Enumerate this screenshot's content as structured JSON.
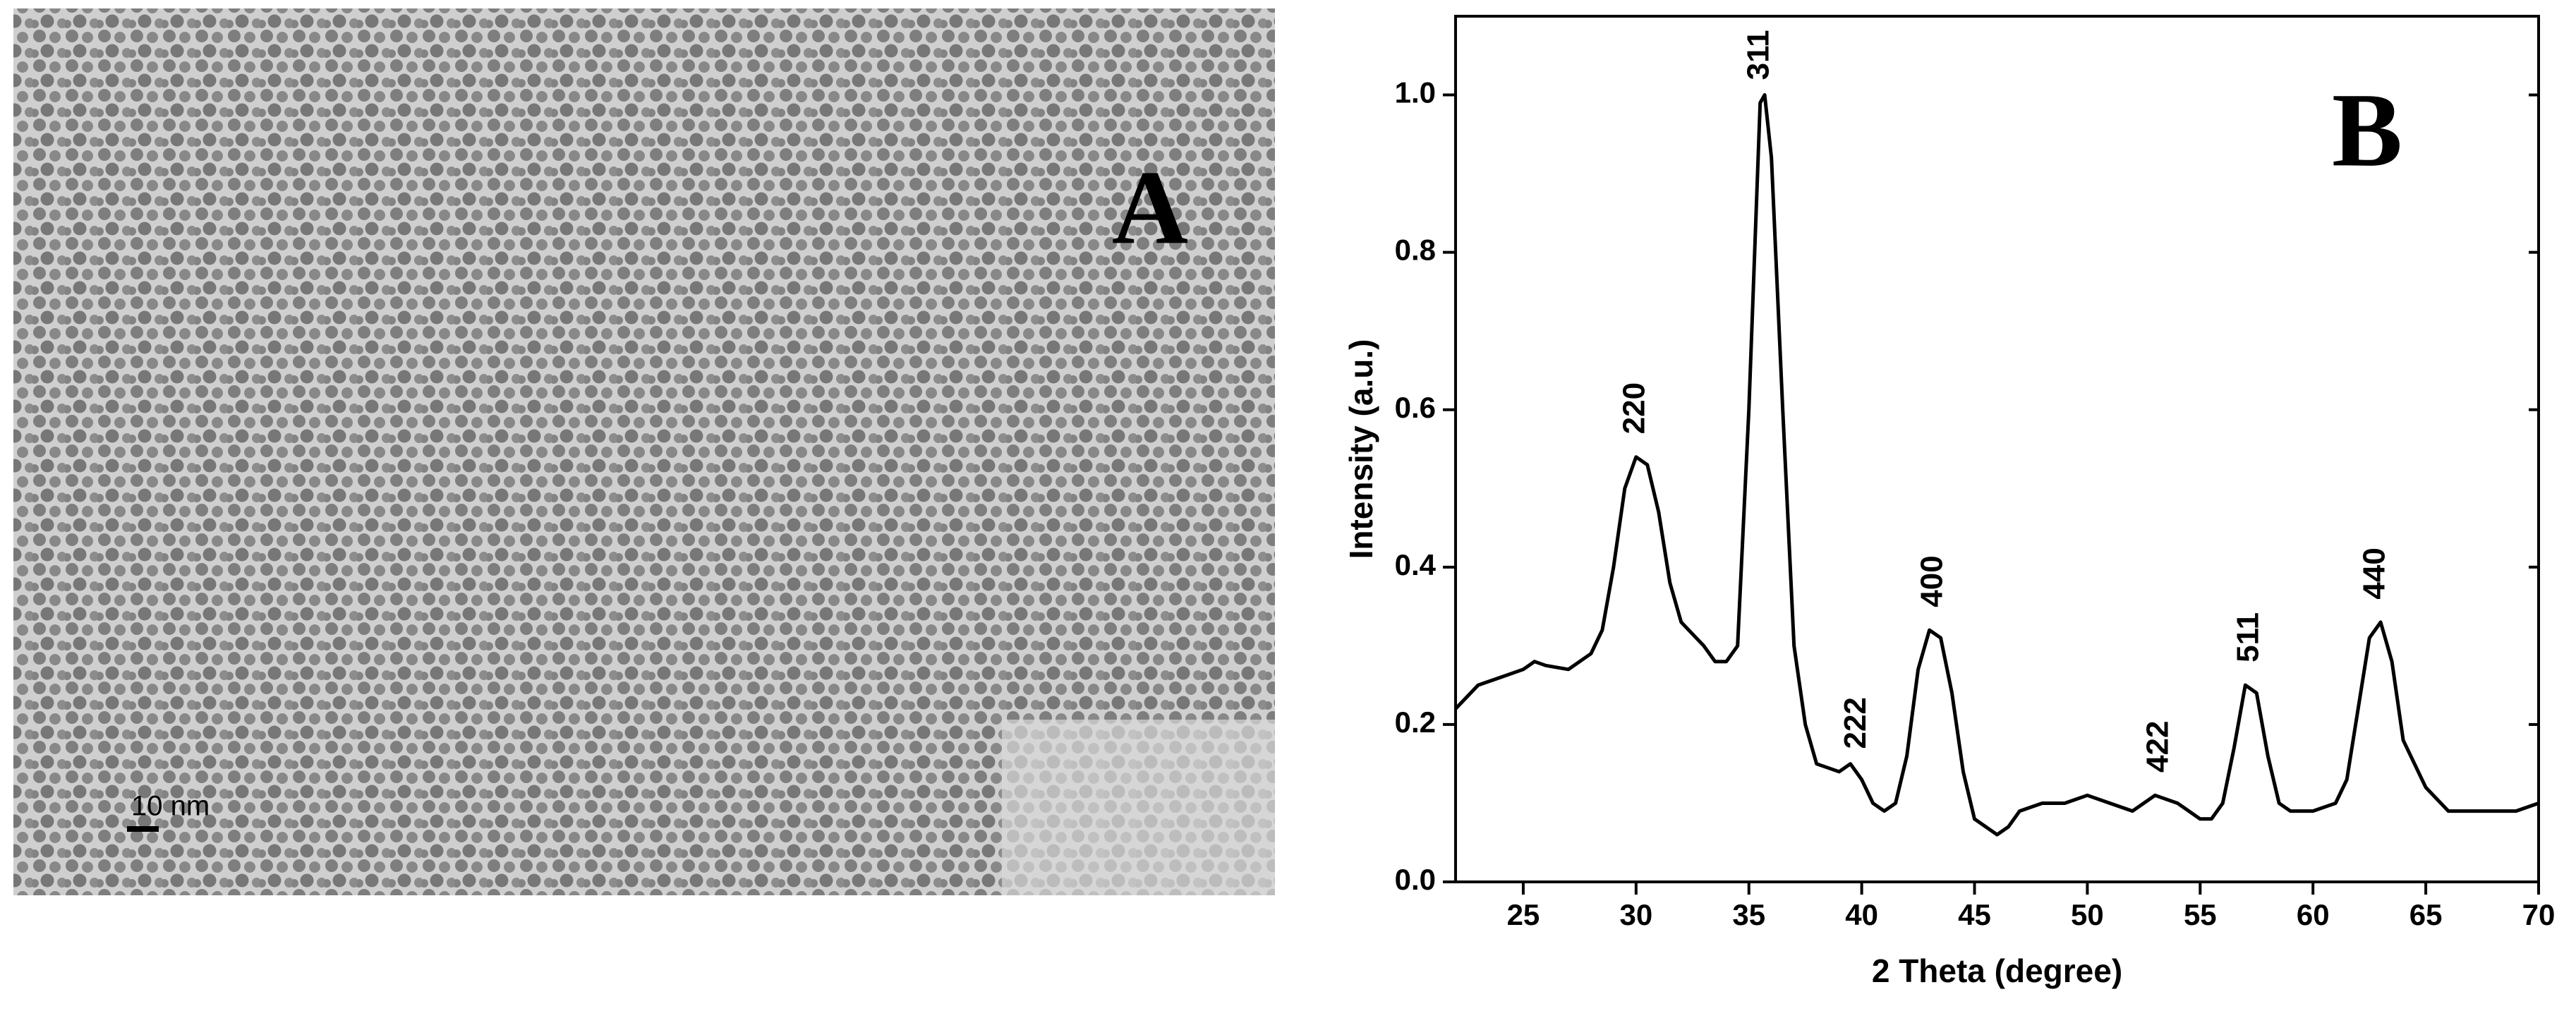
{
  "panel_a": {
    "label": "A",
    "scale_bar": "10 nm"
  },
  "chart_data": {
    "type": "line",
    "panel_label": "B",
    "xlabel": "2 Theta (degree)",
    "ylabel": "Intensity (a.u.)",
    "color": "#000000",
    "x": [
      22,
      23,
      24,
      25,
      25.5,
      26,
      27,
      28,
      28.5,
      29,
      29.5,
      30,
      30.5,
      31,
      31.5,
      32,
      33,
      33.5,
      34,
      34.5,
      35,
      35.5,
      35.7,
      36,
      36.5,
      37,
      37.5,
      38,
      39,
      39.5,
      40,
      40.5,
      41,
      41.5,
      42,
      42.5,
      43,
      43.5,
      44,
      44.5,
      45,
      46,
      46.5,
      47,
      48,
      49,
      50,
      51,
      52,
      53,
      54,
      55,
      55.5,
      56,
      56.5,
      57,
      57.5,
      58,
      58.5,
      59,
      60,
      61,
      61.5,
      62,
      62.5,
      63,
      63.5,
      64,
      65,
      66,
      67,
      68,
      69,
      70
    ],
    "values": [
      0.22,
      0.25,
      0.26,
      0.27,
      0.28,
      0.275,
      0.27,
      0.29,
      0.32,
      0.4,
      0.5,
      0.54,
      0.53,
      0.47,
      0.38,
      0.33,
      0.3,
      0.28,
      0.28,
      0.3,
      0.6,
      0.99,
      1.0,
      0.92,
      0.6,
      0.3,
      0.2,
      0.15,
      0.14,
      0.15,
      0.13,
      0.1,
      0.09,
      0.1,
      0.16,
      0.27,
      0.32,
      0.31,
      0.24,
      0.14,
      0.08,
      0.06,
      0.07,
      0.09,
      0.1,
      0.1,
      0.11,
      0.1,
      0.09,
      0.11,
      0.1,
      0.08,
      0.08,
      0.1,
      0.17,
      0.25,
      0.24,
      0.16,
      0.1,
      0.09,
      0.09,
      0.1,
      0.13,
      0.22,
      0.31,
      0.33,
      0.28,
      0.18,
      0.12,
      0.09,
      0.09,
      0.09,
      0.09,
      0.1
    ],
    "xlim": [
      22,
      70
    ],
    "ylim": [
      0,
      1.1
    ],
    "xticks": [
      25,
      30,
      35,
      40,
      45,
      50,
      55,
      60,
      65,
      70
    ],
    "yticks": [
      {
        "value": 0,
        "label": "0.0"
      },
      {
        "value": 0.2,
        "label": "0.2"
      },
      {
        "value": 0.4,
        "label": "0.4"
      },
      {
        "value": 0.6,
        "label": "0.6"
      },
      {
        "value": 0.8,
        "label": "0.8"
      },
      {
        "value": 1.0,
        "label": "1.0"
      }
    ],
    "annotations": [
      {
        "text": "220",
        "x": 30,
        "y": 0.56
      },
      {
        "text": "311",
        "x": 35.5,
        "y": 1.01
      },
      {
        "text": "222",
        "x": 39.8,
        "y": 0.16
      },
      {
        "text": "400",
        "x": 43.2,
        "y": 0.34
      },
      {
        "text": "422",
        "x": 53.2,
        "y": 0.13
      },
      {
        "text": "511",
        "x": 57.2,
        "y": 0.27
      },
      {
        "text": "440",
        "x": 62.8,
        "y": 0.35
      }
    ]
  }
}
